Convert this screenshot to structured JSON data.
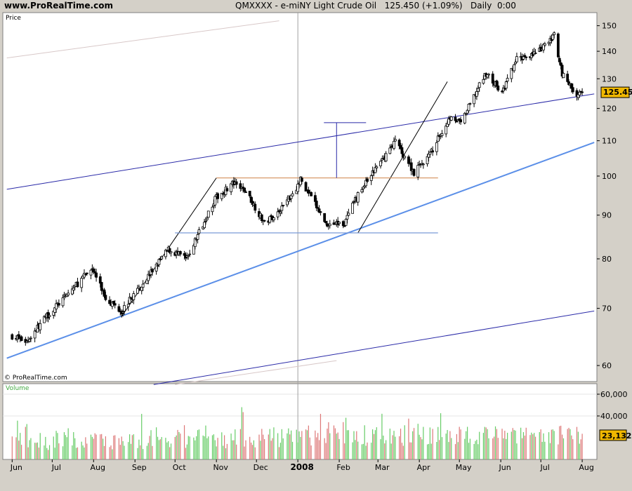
{
  "header": {
    "site": "www.ProRealTime.com",
    "instrument": "QMXXXX - e-miNY Light Crude Oil",
    "last_change": "125.450 (+1.09%)",
    "period": "Daily  0:00"
  },
  "price_panel": {
    "label": "Price",
    "watermark": "© ProRealTime.com",
    "current_price_tag": "125.450",
    "yticks": [
      60,
      70,
      80,
      90,
      100,
      110,
      120,
      130,
      140,
      150
    ]
  },
  "volume_panel": {
    "label": "Volume",
    "current_volume_tag": "23,132",
    "yticks": [
      "40,000",
      "60,000"
    ]
  },
  "colors": {
    "background": "#ffffff",
    "frame": "#d4d0c8",
    "candle": "#000000",
    "trend_main": "#5b8fe8",
    "channel": "#2a2aa8",
    "resistance": "#d89a6a",
    "support": "#7a9ad8",
    "price_tag": "#f0b800",
    "volume_up": "#66cc66",
    "volume_down": "#dd7777"
  },
  "chart_data": {
    "type": "candlestick",
    "title": "QMXXXX - e-miNY Light Crude Oil",
    "x_tick_labels": [
      "Jun",
      "Jul",
      "Aug",
      "Sep",
      "Oct",
      "Nov",
      "Dec",
      "2008",
      "Feb",
      "Mar",
      "Apr",
      "May",
      "Jun",
      "Jul",
      "Aug"
    ],
    "y_range": [
      57,
      152
    ],
    "y_scale": "log",
    "close_anchors": [
      {
        "d": "2007-06-01",
        "v": 65
      },
      {
        "d": "2007-06-12",
        "v": 64
      },
      {
        "d": "2007-06-25",
        "v": 68
      },
      {
        "d": "2007-07-10",
        "v": 72
      },
      {
        "d": "2007-07-31",
        "v": 78
      },
      {
        "d": "2007-08-10",
        "v": 72
      },
      {
        "d": "2007-08-22",
        "v": 69.5
      },
      {
        "d": "2007-09-10",
        "v": 76
      },
      {
        "d": "2007-09-26",
        "v": 82
      },
      {
        "d": "2007-10-10",
        "v": 80
      },
      {
        "d": "2007-10-31",
        "v": 94
      },
      {
        "d": "2007-11-13",
        "v": 98
      },
      {
        "d": "2007-11-23",
        "v": 96
      },
      {
        "d": "2007-12-07",
        "v": 88
      },
      {
        "d": "2007-12-18",
        "v": 91
      },
      {
        "d": "2007-12-31",
        "v": 97
      },
      {
        "d": "2008-01-03",
        "v": 99
      },
      {
        "d": "2008-01-22",
        "v": 88
      },
      {
        "d": "2008-02-05",
        "v": 88
      },
      {
        "d": "2008-02-15",
        "v": 95
      },
      {
        "d": "2008-03-07",
        "v": 106
      },
      {
        "d": "2008-03-14",
        "v": 110
      },
      {
        "d": "2008-03-28",
        "v": 101
      },
      {
        "d": "2008-04-09",
        "v": 106
      },
      {
        "d": "2008-04-25",
        "v": 118
      },
      {
        "d": "2008-05-02",
        "v": 115
      },
      {
        "d": "2008-05-21",
        "v": 132
      },
      {
        "d": "2008-06-02",
        "v": 125
      },
      {
        "d": "2008-06-13",
        "v": 137
      },
      {
        "d": "2008-06-30",
        "v": 140
      },
      {
        "d": "2008-07-11",
        "v": 146
      },
      {
        "d": "2008-07-17",
        "v": 132
      },
      {
        "d": "2008-07-28",
        "v": 124
      },
      {
        "d": "2008-08-01",
        "v": 125.45
      }
    ],
    "annotations": {
      "main_trendline": [
        {
          "d": "2007-05-28",
          "v": 61.2
        },
        {
          "d": "2008-08-10",
          "v": 109.5
        }
      ],
      "channel_upper": [
        {
          "d": "2007-05-28",
          "v": 96.5
        },
        {
          "d": "2008-08-10",
          "v": 124.8
        }
      ],
      "channel_lower": [
        {
          "d": "2007-09-15",
          "v": 57
        },
        {
          "d": "2008-08-10",
          "v": 69.5
        }
      ],
      "resistance": {
        "from": "2007-11-01",
        "to": "2008-04-15",
        "v": 99.5
      },
      "support": {
        "from": "2007-10-01",
        "to": "2008-04-15",
        "v": 85.8
      },
      "steep_line_1": [
        {
          "d": "2007-08-22",
          "v": 68.5
        },
        {
          "d": "2007-11-01",
          "v": 99.5
        }
      ],
      "steep_line_2": [
        {
          "d": "2008-02-15",
          "v": 85.8
        },
        {
          "d": "2008-04-22",
          "v": 129
        }
      ],
      "target_marker": {
        "d": "2008-01-30",
        "top": 115.5,
        "bottom": 99.5
      },
      "faint_line_1": [
        {
          "d": "2007-05-28",
          "v": 137.5
        },
        {
          "d": "2007-12-18",
          "v": 152
        }
      ],
      "faint_line_2": [
        {
          "d": "2007-10-01",
          "v": 57
        },
        {
          "d": "2008-01-30",
          "v": 60.8
        }
      ]
    },
    "volume": {
      "max": 60000,
      "last": 23132
    }
  }
}
